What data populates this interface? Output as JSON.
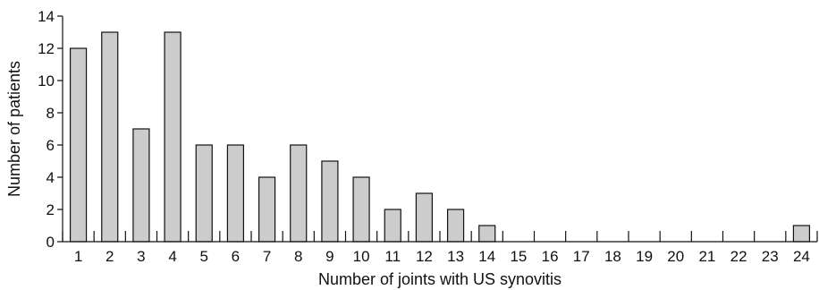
{
  "chart_data": {
    "type": "bar",
    "title": "",
    "xlabel": "Number of joints with US synovitis",
    "ylabel": "Number of patients",
    "categories": [
      "1",
      "2",
      "3",
      "4",
      "5",
      "6",
      "7",
      "8",
      "9",
      "10",
      "11",
      "12",
      "13",
      "14",
      "15",
      "16",
      "17",
      "18",
      "19",
      "20",
      "21",
      "22",
      "23",
      "24"
    ],
    "values": [
      12,
      13,
      7,
      13,
      6,
      6,
      4,
      6,
      5,
      4,
      2,
      3,
      2,
      1,
      0,
      0,
      0,
      0,
      0,
      0,
      0,
      0,
      0,
      1
    ],
    "ylim": [
      0,
      14
    ],
    "yticks": [
      "0",
      "2",
      "4",
      "6",
      "8",
      "10",
      "12",
      "14"
    ],
    "grid": false,
    "legend": "none",
    "colors": {
      "bar_fill": "#cccccc",
      "bar_stroke": "#111111",
      "axis": "#111111"
    }
  }
}
